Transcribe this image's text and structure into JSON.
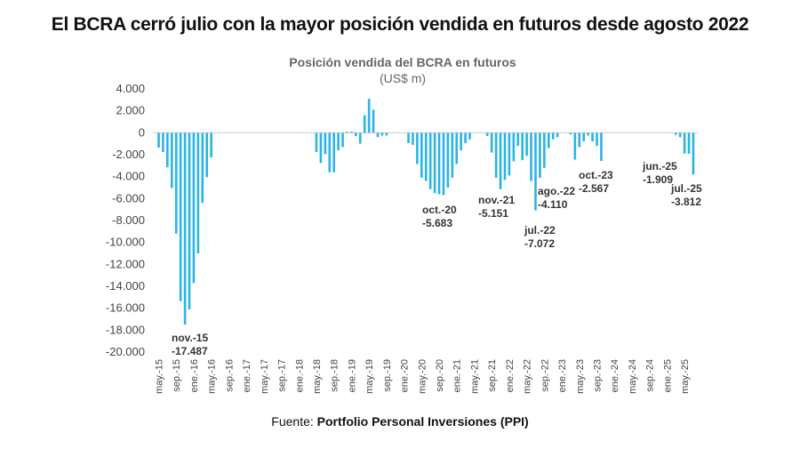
{
  "title": "El BCRA cerró julio con la mayor posición vendida en futuros desde agosto 2022",
  "source_label": "Fuente:",
  "source_name": "Portfolio Personal Inversiones (PPI)",
  "chart_data": {
    "type": "bar",
    "title": "Posición vendida del BCRA en futuros",
    "subtitle": "(US$ m)",
    "start_month": "may-15",
    "end_month": "jul-25",
    "values": [
      -1350,
      -1750,
      -3150,
      -5050,
      -9200,
      -15350,
      -17487,
      -16100,
      -13700,
      -11000,
      -6400,
      -4050,
      -2250,
      0,
      0,
      0,
      0,
      0,
      0,
      0,
      0,
      0,
      0,
      0,
      0,
      0,
      0,
      0,
      0,
      0,
      0,
      0,
      0,
      0,
      0,
      0,
      -1750,
      -2750,
      -1950,
      -3600,
      -3600,
      -1600,
      -1300,
      100,
      100,
      -300,
      -1000,
      1600,
      3100,
      2100,
      -400,
      -250,
      -250,
      0,
      0,
      0,
      0,
      -950,
      -1100,
      -2850,
      -4100,
      -4400,
      -5150,
      -5500,
      -5600,
      -5683,
      -5000,
      -4100,
      -2850,
      -1600,
      -950,
      -600,
      0,
      0,
      0,
      -300,
      -1800,
      -4100,
      -5151,
      -4300,
      -3900,
      -2600,
      -1200,
      -2500,
      -2100,
      -4400,
      -7072,
      -4110,
      -3200,
      -1400,
      -600,
      -400,
      0,
      0,
      -150,
      -2450,
      -1300,
      -800,
      -250,
      -800,
      -1200,
      -2567,
      0,
      0,
      0,
      0,
      0,
      0,
      0,
      0,
      0,
      0,
      0,
      0,
      0,
      0,
      0,
      0,
      -200,
      -400,
      -1900,
      -1909,
      -3812
    ],
    "x_tick_labels": [
      "may.-15",
      "sep.-15",
      "ene.-16",
      "may.-16",
      "sep.-16",
      "ene.-17",
      "may.-17",
      "sep.-17",
      "ene.-18",
      "may.-18",
      "sep.-18",
      "ene.-19",
      "may.-19",
      "sep.-19",
      "ene.-20",
      "may.-20",
      "sep.-20",
      "ene.-21",
      "may.-21",
      "sep.-21",
      "ene.-22",
      "may.-22",
      "sep.-22",
      "ene.-23",
      "may.-23",
      "sep.-23",
      "ene.-24",
      "may.-24",
      "sep.-24",
      "ene.-25",
      "may.-25"
    ],
    "y_ticks": [
      "4.000",
      "2.000",
      "0",
      "-2.000",
      "-4.000",
      "-6.000",
      "-8.000",
      "-10.000",
      "-12.000",
      "-14.000",
      "-16.000",
      "-18.000",
      "-20.000"
    ],
    "ylim": [
      -20000,
      4000
    ],
    "grid": false,
    "bar_color": "#2bb3e6",
    "annotations": [
      {
        "month": "nov.-15",
        "value": "-17.487"
      },
      {
        "month": "oct.-20",
        "value": "-5.683"
      },
      {
        "month": "nov.-21",
        "value": "-5.151"
      },
      {
        "month": "jul.-22",
        "value": "-7.072"
      },
      {
        "month": "ago.-22",
        "value": "-4.110"
      },
      {
        "month": "oct.-23",
        "value": "-2.567"
      },
      {
        "month": "jun.-25",
        "value": "-1.909"
      },
      {
        "month": "jul.-25",
        "value": "-3.812"
      }
    ]
  }
}
